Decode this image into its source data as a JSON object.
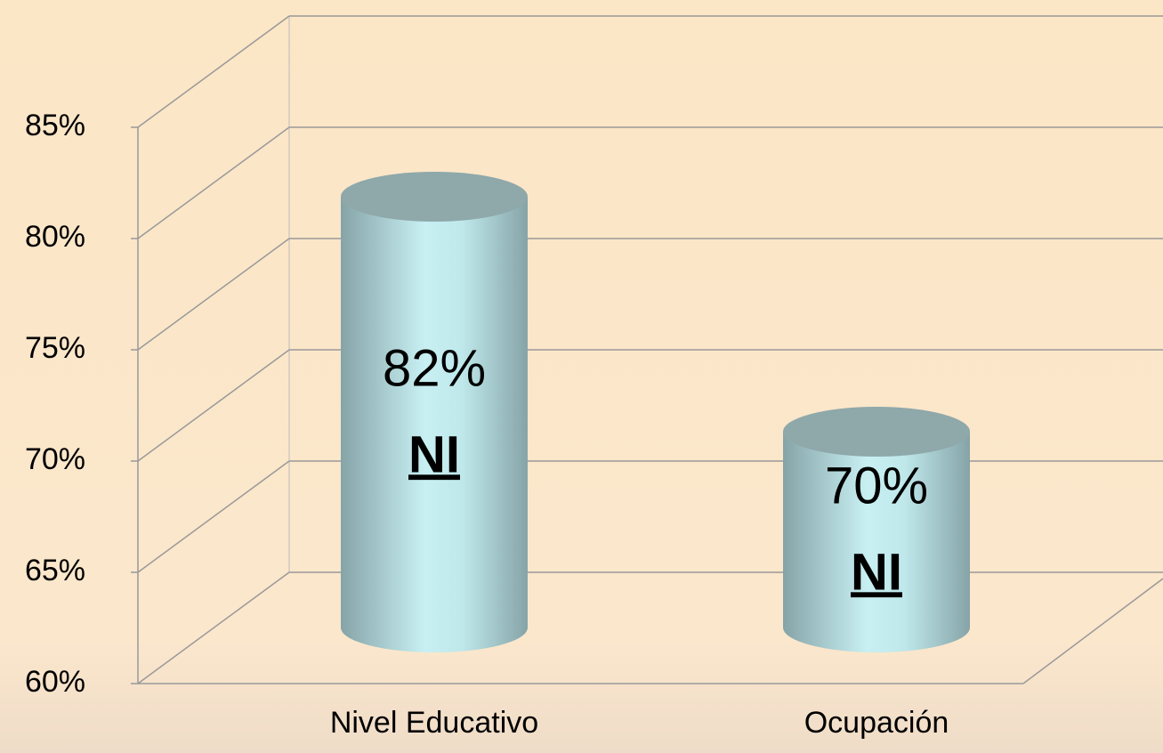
{
  "chart_data": {
    "type": "bar",
    "categories": [
      "Nivel Educativo",
      "Ocupación"
    ],
    "values": [
      82,
      70
    ],
    "value_labels": [
      "82%",
      "70%"
    ],
    "annotations": [
      "NI",
      "NI"
    ],
    "color": "#c6eef0",
    "ylim": [
      60,
      85
    ],
    "yticks": [
      {
        "value": 60,
        "label": "60%"
      },
      {
        "value": 65,
        "label": "65%"
      },
      {
        "value": 70,
        "label": "70%"
      },
      {
        "value": 75,
        "label": "75%"
      },
      {
        "value": 80,
        "label": "80%"
      },
      {
        "value": 85,
        "label": "85%"
      }
    ],
    "grid": true
  }
}
